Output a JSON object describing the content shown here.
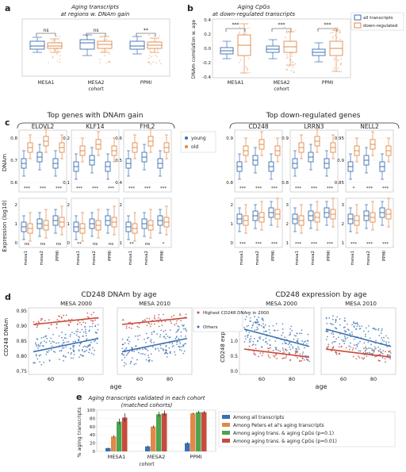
{
  "colors": {
    "blue": "#3b6fb0",
    "orange": "#e0894a",
    "red": "#c84a3c",
    "green": "#4fa34f",
    "grey": "#888888"
  },
  "panel_a": {
    "letter": "a",
    "title1": "Aging transcripts",
    "title2": "at regions w. DNAm gain",
    "xlabel": "cohort",
    "categories": [
      "MESA1",
      "MESA2",
      "PPMI"
    ],
    "sig": [
      "ns",
      "ns",
      "**"
    ]
  },
  "panel_b": {
    "letter": "b",
    "title1": "Aging CpGs",
    "title2": "at down-regulated transcripts",
    "xlabel": "cohort",
    "ylabel": "DNAm correlation w. age",
    "categories": [
      "MESA1",
      "MESA2",
      "PPMI"
    ],
    "sig": [
      "***",
      "***",
      "***"
    ],
    "yticks": [
      "0.4",
      "0.2",
      "0.0",
      "-0.2",
      "-0.4"
    ],
    "legend": [
      "all transcripts",
      "down-regulated"
    ]
  },
  "panel_c": {
    "letter": "c",
    "left_title": "Top genes with DNAm gain",
    "right_title": "Top down-regulated genes",
    "ylabel_top": "DNAm",
    "ylabel_bottom": "Expression (log10)",
    "legend": [
      "young",
      "old"
    ],
    "cohorts": [
      "mesa1",
      "mesa2",
      "PPMI"
    ],
    "genes": [
      {
        "name": "ELOVL2",
        "yticks_top": [
          "0.8",
          "0.7",
          "0.6"
        ],
        "yticks_bottom": [
          "2",
          "1",
          "0"
        ],
        "sig_top": [
          "***",
          "***",
          "***"
        ],
        "sig_bottom": [
          "ns",
          "ns",
          "ns"
        ]
      },
      {
        "name": "KLF14",
        "yticks_top": [
          "0.2",
          "0.1"
        ],
        "yticks_bottom": [
          "2",
          "1",
          "0"
        ],
        "sig_top": [
          "***",
          "***",
          "***"
        ],
        "sig_bottom": [
          "**",
          "ns",
          "ns"
        ]
      },
      {
        "name": "FHL2",
        "yticks_top": [
          "0.6",
          "0.5",
          "0.4"
        ],
        "yticks_bottom": [
          "2",
          "1"
        ],
        "sig_top": [
          "***",
          "***",
          "***"
        ],
        "sig_bottom": [
          "**",
          "ns",
          "*"
        ]
      },
      {
        "name": "CD248",
        "yticks_top": [
          "0.9",
          "0.8"
        ],
        "yticks_bottom": [
          "2",
          "1",
          "0"
        ],
        "sig_top": [
          "***",
          "***",
          "***"
        ],
        "sig_bottom": [
          "***",
          "***",
          "***"
        ]
      },
      {
        "name": "LRRN3",
        "yticks_top": [
          "0.9",
          "0.8"
        ],
        "yticks_bottom": [
          "3",
          "2",
          "1"
        ],
        "sig_top": [
          "***",
          "***",
          "***"
        ],
        "sig_bottom": [
          "***",
          "***",
          "***"
        ]
      },
      {
        "name": "NELL2",
        "yticks_top": [
          "0.95",
          "0.9",
          "0.85"
        ],
        "yticks_bottom": [
          "3",
          "2",
          "1"
        ],
        "sig_top": [
          "*",
          "***",
          "***"
        ],
        "sig_bottom": [
          "***",
          "***",
          "***"
        ]
      }
    ]
  },
  "panel_d": {
    "letter": "d",
    "left_title": "CD248 DNAm by age",
    "right_title": "CD248 expression by age",
    "sub_titles": [
      "MESA 2000",
      "MESA 2010"
    ],
    "xlabel": "age",
    "ylabel_left": "CD248 DNAm",
    "ylabel_right": "CD248 expression",
    "yticks_left": [
      "0.95",
      "0.90",
      "0.85",
      "0.80",
      "0.75"
    ],
    "yticks_right": [
      "2.0",
      "1.5",
      "1.0",
      "0.5",
      "0.0"
    ],
    "xticks": [
      "60",
      "80"
    ],
    "legend": [
      "Highest CD248 DNAm in 2000",
      "Others"
    ]
  },
  "chart_data": {
    "type": "bar",
    "title": "Aging transcripts validated in each cohort (matched cohorts)",
    "xlabel": "cohort",
    "ylabel": "% aging transcripts",
    "categories": [
      "MESA1",
      "MESA2",
      "PPMI"
    ],
    "ylim": [
      0,
      100
    ],
    "yticks": [
      "100",
      "80",
      "60",
      "40",
      "20",
      "0"
    ],
    "series": [
      {
        "name": "Among all transcripts",
        "color": "#3b6fb0",
        "values": [
          8,
          12,
          20
        ]
      },
      {
        "name": "Among Peters et al's aging transcripts",
        "color": "#e0894a",
        "values": [
          36,
          60,
          92
        ]
      },
      {
        "name": "Among aging trans. & aging CpGs (p=0.1)",
        "color": "#4fa34f",
        "values": [
          72,
          90,
          95
        ]
      },
      {
        "name": "Among aging trans. & aging CpGs (p=0.01)",
        "color": "#c84a3c",
        "values": [
          82,
          92,
          95
        ]
      }
    ],
    "errors": [
      [
        1,
        2,
        2
      ],
      [
        3,
        3,
        2
      ],
      [
        7,
        6,
        3
      ],
      [
        10,
        7,
        3
      ]
    ],
    "panel_letter": "e",
    "title1": "Aging transcripts validated in each cohort",
    "title2": "(matched cohorts)"
  }
}
